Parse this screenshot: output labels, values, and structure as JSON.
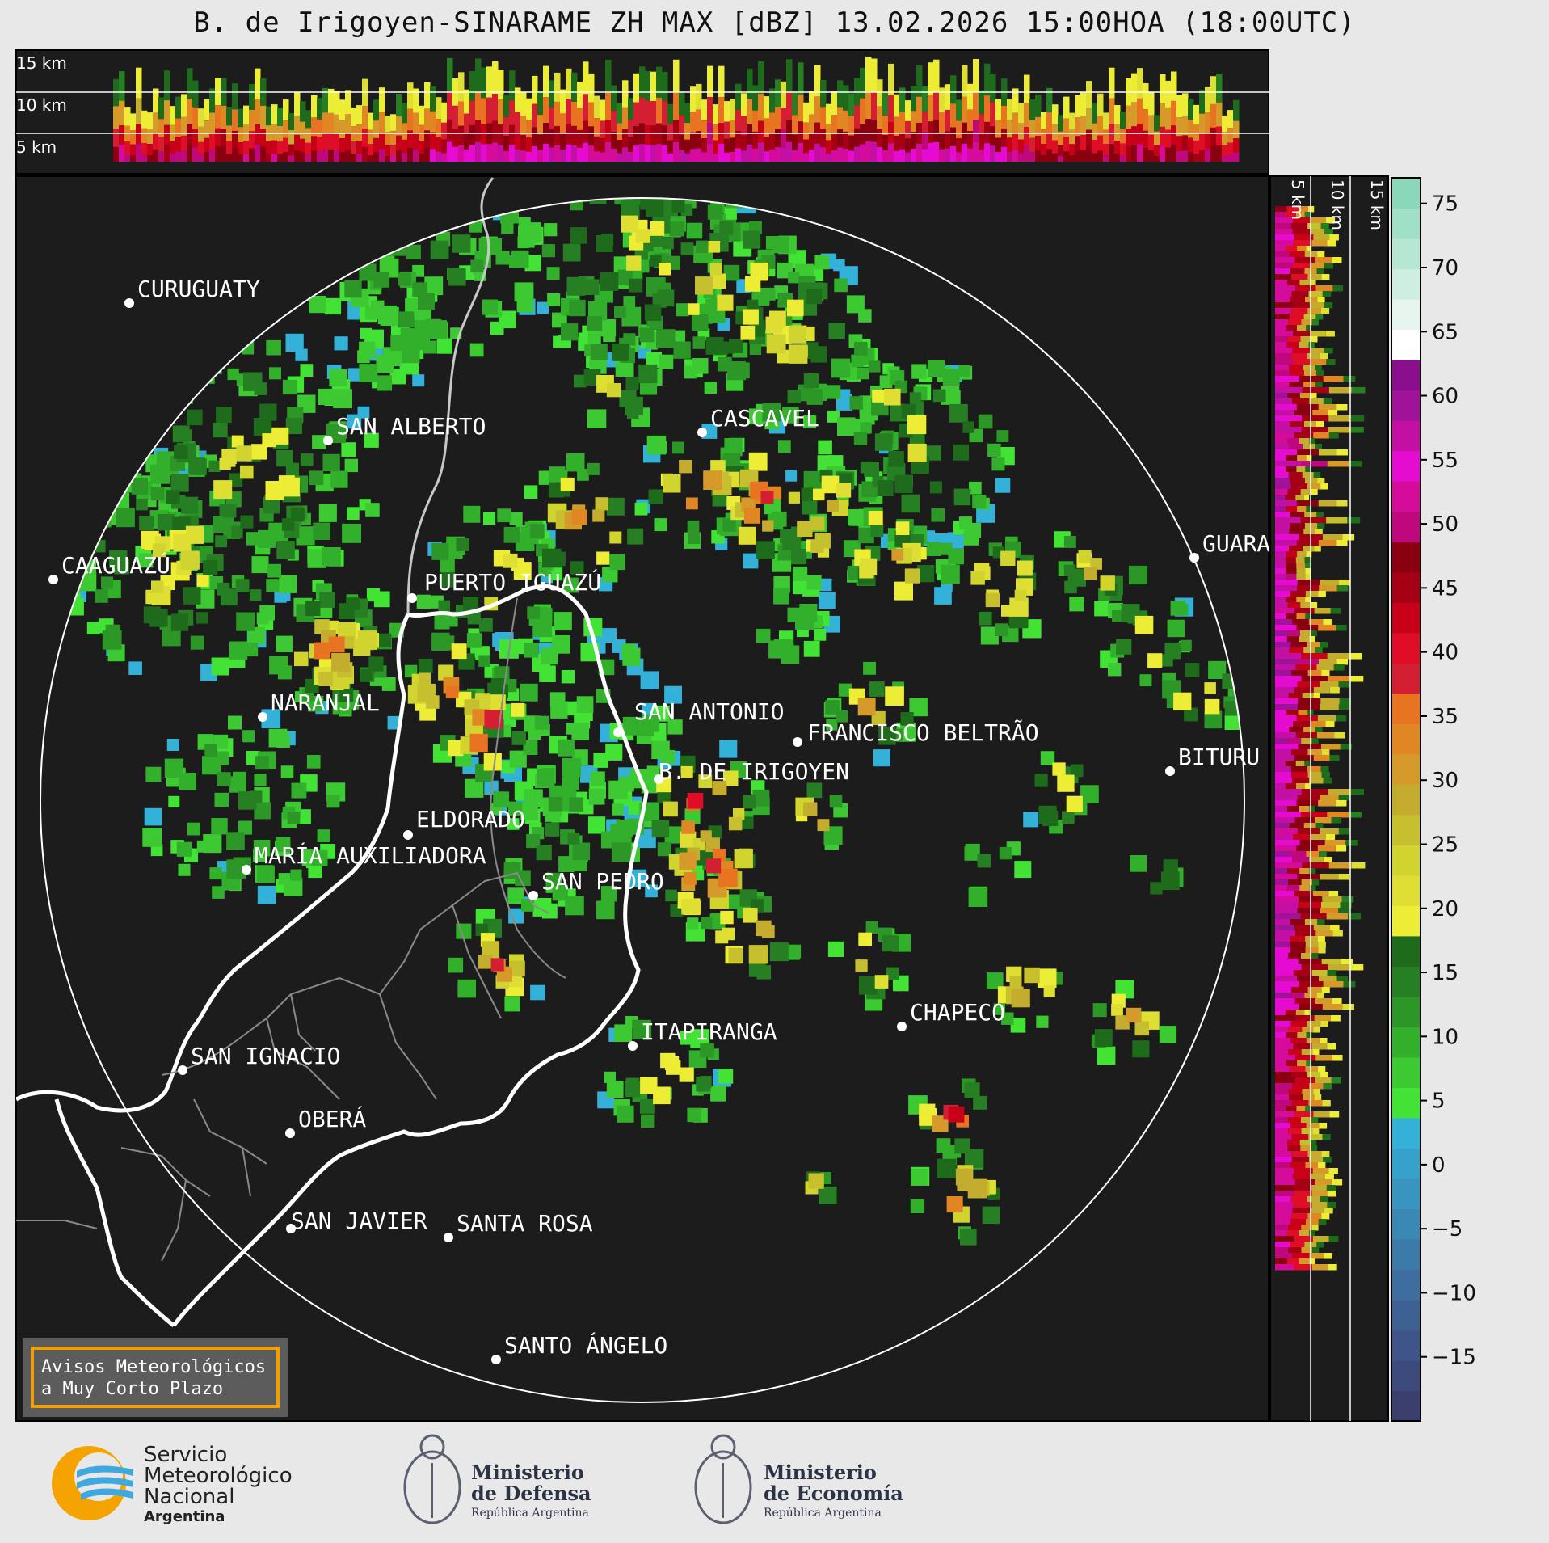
{
  "title": "B. de Irigoyen-SINARAME ZH MAX [dBZ] 13.02.2026 15:00HOA (18:00UTC)",
  "top_panel": {
    "height_labels": [
      "15 km",
      "10 km",
      "5 km"
    ]
  },
  "side_panel": {
    "height_labels": [
      "5 km",
      "10 km",
      "15 km"
    ]
  },
  "cities": [
    {
      "name": "CURUGUATY"
    },
    {
      "name": "SAN ALBERTO"
    },
    {
      "name": "CASCAVEL"
    },
    {
      "name": "CAAGUAZÚ"
    },
    {
      "name": "GUARA"
    },
    {
      "name": "PUERTO IGUAZÚ"
    },
    {
      "name": "NARANJAL"
    },
    {
      "name": "SAN ANTONIO"
    },
    {
      "name": "FRANCISCO BELTRÃO"
    },
    {
      "name": "BITURU"
    },
    {
      "name": "B. DE IRIGOYEN"
    },
    {
      "name": "ELDORADO"
    },
    {
      "name": "MARÍA AUXILIADORA"
    },
    {
      "name": "SAN PEDRO"
    },
    {
      "name": "CHAPECO"
    },
    {
      "name": "ITAPIRANGA"
    },
    {
      "name": "SAN IGNACIO"
    },
    {
      "name": "OBERÁ"
    },
    {
      "name": "SAN JAVIER"
    },
    {
      "name": "SANTA ROSA"
    },
    {
      "name": "SANTO ÁNGELO"
    }
  ],
  "colorbar": {
    "ticks": [
      "75",
      "70",
      "65",
      "60",
      "55",
      "50",
      "45",
      "40",
      "35",
      "30",
      "25",
      "20",
      "15",
      "10",
      "5",
      "0",
      "−5",
      "−10",
      "−15"
    ],
    "colors_low_to_high": [
      "#3a3f6e",
      "#3c4a7c",
      "#3f5589",
      "#3e6194",
      "#3d6e9f",
      "#3c7aa9",
      "#3a88b4",
      "#3895c0",
      "#36a2cb",
      "#33b1d8",
      "#43e336",
      "#3cc932",
      "#32b02c",
      "#2c9626",
      "#267f22",
      "#1e6b1b",
      "#eded35",
      "#dfdf33",
      "#d1d32f",
      "#c7c02e",
      "#c4ac2f",
      "#d59a2a",
      "#e08724",
      "#e87321",
      "#d41f33",
      "#e00d27",
      "#c80018",
      "#a50013",
      "#8a0010",
      "#c0087e",
      "#d40b9b",
      "#e60bd0",
      "#c40fa5",
      "#a0129a",
      "#8b0e8e",
      "#ffffff",
      "#e6f5ee",
      "#cdeee0",
      "#b6e7d3",
      "#9fe0c6",
      "#8ad8b9"
    ]
  },
  "branding": {
    "box_line1": "Avisos Meteorológicos",
    "box_line2": "a Muy Corto Plazo",
    "smn_line1": "Servicio",
    "smn_line2": "Meteorológico",
    "smn_line3": "Nacional",
    "smn_line4": "Argentina",
    "defensa_line1": "Ministerio",
    "defensa_line2": "de Defensa",
    "defensa_line3": "República Argentina",
    "economia_line1": "Ministerio",
    "economia_line2": "de Economía",
    "economia_line3": "República Argentina"
  }
}
